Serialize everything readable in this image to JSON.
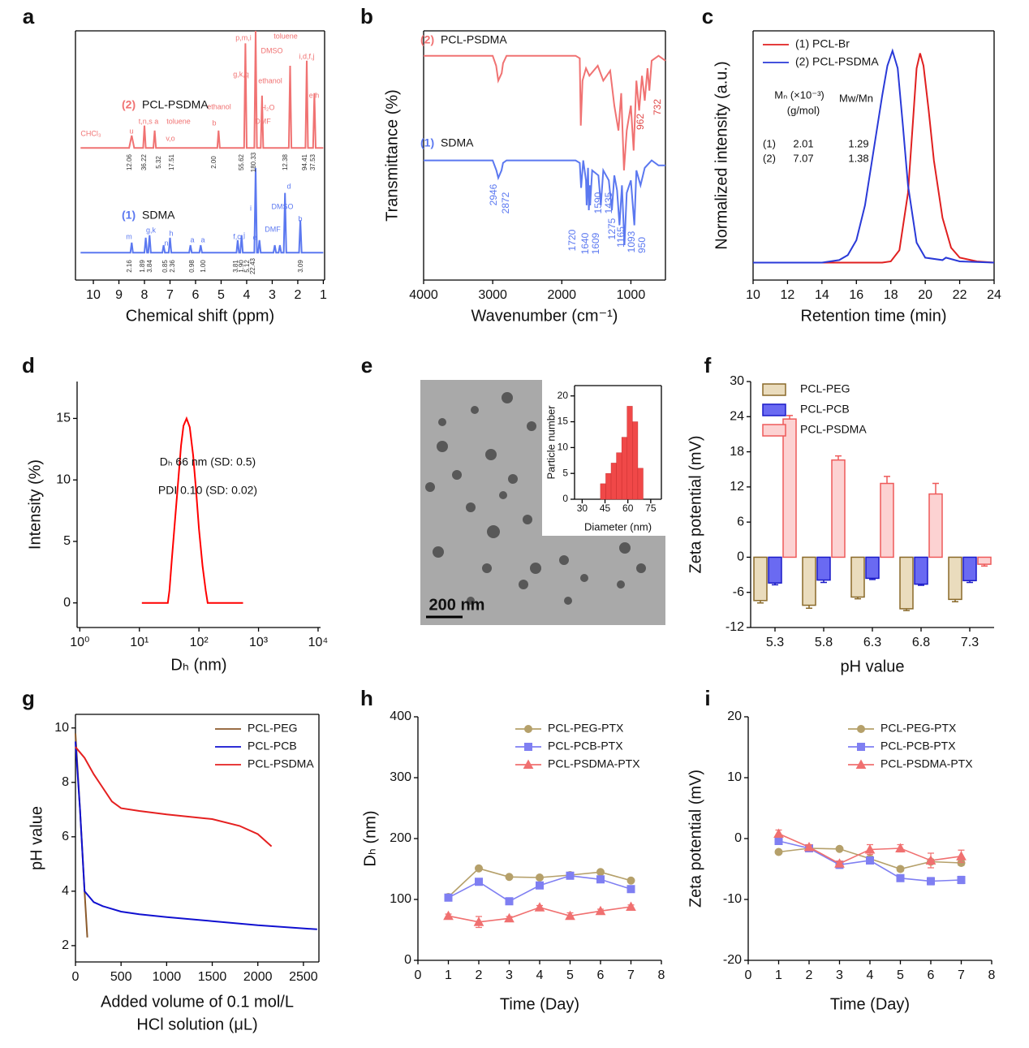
{
  "chart_data": [
    {
      "type": "spectrum",
      "panel": "a",
      "xlabel": "Chemical shift (ppm)",
      "xlim": [
        10.7,
        0.95
      ],
      "ylim": [
        0,
        100
      ],
      "xticks": [
        10,
        9,
        8,
        7,
        6,
        5,
        4,
        3,
        2,
        1
      ],
      "frame": true,
      "series": [
        {
          "tag": "(2)",
          "name": "PCL-PSDMA",
          "color": "#f07272",
          "x": [
            10.5,
            8.6,
            8.5,
            8.4,
            8.05,
            8.0,
            7.95,
            7.65,
            7.6,
            7.55,
            5.15,
            5.1,
            5.05,
            4.1,
            4.05,
            4.0,
            3.7,
            3.65,
            3.6,
            3.45,
            3.4,
            3.35,
            2.35,
            2.3,
            2.25,
            1.7,
            1.65,
            1.6,
            1.4,
            1.35,
            1.3,
            1.0
          ],
          "values": [
            53,
            53,
            58,
            53,
            53,
            62,
            53,
            53,
            60,
            53,
            53,
            60,
            53,
            53,
            95,
            53,
            53,
            100,
            53,
            53,
            74,
            53,
            53,
            86,
            53,
            53,
            88,
            53,
            53,
            75,
            53,
            53
          ]
        },
        {
          "tag": "(1)",
          "name": "SDMA",
          "color": "#5b78f0",
          "x": [
            10.5,
            8.55,
            8.5,
            8.45,
            8.0,
            7.95,
            7.9,
            7.85,
            7.8,
            7.75,
            7.3,
            7.25,
            7.2,
            7.05,
            7.0,
            6.95,
            6.25,
            6.2,
            6.15,
            5.85,
            5.8,
            5.75,
            4.4,
            4.35,
            4.3,
            4.25,
            4.2,
            4.15,
            3.7,
            3.65,
            3.6,
            3.55,
            3.5,
            3.45,
            2.95,
            2.9,
            2.85,
            2.75,
            2.7,
            2.65,
            2.55,
            2.5,
            2.45,
            1.95,
            1.9,
            1.85,
            1.0
          ],
          "values": [
            11,
            11,
            15,
            11,
            11,
            17,
            11,
            11,
            18,
            11,
            11,
            14,
            11,
            11,
            17,
            11,
            11,
            14,
            11,
            11,
            14,
            11,
            11,
            16,
            11,
            11,
            18,
            11,
            11,
            45,
            11,
            11,
            16,
            11,
            11,
            14,
            11,
            11,
            14,
            11,
            11,
            35,
            11,
            11,
            24,
            11,
            11
          ]
        }
      ],
      "annotations": [
        "p,m,i",
        "g,k,q",
        "toluene",
        "DMSO",
        "ethanol",
        "H₂O",
        "DMF",
        "i,d,f,j",
        "e,h",
        "ethanol",
        "b",
        "t,n,s a",
        "toluene",
        "v,o",
        "CHCl₃",
        "u",
        "m",
        "g,k",
        "h",
        "n",
        "a",
        "a",
        "f,c",
        "j",
        "i",
        "e",
        "d",
        "DMSO",
        "DMF",
        "b",
        "12.06",
        "36.22",
        "5.32",
        "17.51",
        "2.00",
        "55.62",
        "180.33",
        "12.38",
        "94.41",
        "37.53",
        "2.16",
        "1.89",
        "3.84",
        "0.85",
        "2.36",
        "0.98",
        "1.00",
        "3.81",
        "1.90",
        "5.12",
        "22.43",
        "3.09"
      ]
    },
    {
      "type": "spectrum",
      "panel": "b",
      "xlabel": "Wavenumber (cm⁻¹)",
      "ylabel": "Transmittance (%)",
      "xlim": [
        4000,
        500
      ],
      "ylim": [
        0,
        100
      ],
      "xticks": [
        4000,
        3000,
        2000,
        1000
      ],
      "frame": true,
      "series": [
        {
          "tag": "(2)",
          "name": "PCL-PSDMA",
          "color": "#f07272",
          "x": [
            4000,
            3000,
            2950,
            2920,
            2870,
            2850,
            2800,
            1800,
            1740,
            1725,
            1700,
            1650,
            1600,
            1480,
            1400,
            1300,
            1240,
            1180,
            1140,
            1100,
            1060,
            1000,
            960,
            920,
            880,
            840,
            800,
            760,
            732,
            700,
            600,
            500
          ],
          "values": [
            90,
            90,
            86,
            80,
            83,
            87,
            90,
            90,
            89,
            62,
            80,
            85,
            82,
            86,
            80,
            84,
            70,
            60,
            75,
            44,
            60,
            70,
            52,
            80,
            68,
            82,
            72,
            85,
            76,
            88,
            90,
            88
          ]
        },
        {
          "tag": "(1)",
          "name": "SDMA",
          "color": "#5b78f0",
          "x": [
            4000,
            3000,
            2946,
            2920,
            2872,
            2850,
            2800,
            1800,
            1740,
            1720,
            1690,
            1650,
            1640,
            1620,
            1609,
            1595,
            1590,
            1560,
            1470,
            1435,
            1400,
            1320,
            1275,
            1240,
            1200,
            1165,
            1130,
            1093,
            1060,
            1000,
            950,
            920,
            860,
            800,
            700,
            600,
            500
          ],
          "values": [
            48,
            48,
            44,
            41,
            44,
            47,
            48,
            48,
            47,
            37,
            48,
            40,
            30,
            45,
            28,
            38,
            30,
            44,
            42,
            30,
            44,
            40,
            28,
            42,
            36,
            22,
            38,
            14,
            35,
            40,
            22,
            44,
            38,
            45,
            48,
            46,
            46
          ]
        }
      ],
      "annotations": [
        "962",
        "732",
        "2946",
        "2872",
        "1720",
        "1640",
        "1609",
        "1590",
        "1435",
        "1275",
        "1165",
        "1093",
        "950"
      ]
    },
    {
      "type": "line",
      "panel": "c",
      "xlabel": "Retention time (min)",
      "ylabel": "Normalized intensity (a.u.)",
      "xlim": [
        10,
        24
      ],
      "ylim": [
        0,
        100
      ],
      "xticks": [
        10,
        12,
        14,
        16,
        18,
        20,
        22,
        24
      ],
      "frame": true,
      "series": [
        {
          "name": "(1) PCL-Br",
          "color": "#e02020",
          "x": [
            10,
            17.5,
            18,
            18.5,
            19,
            19.3,
            19.5,
            19.7,
            19.9,
            20.2,
            20.5,
            21,
            21.5,
            22,
            23,
            24
          ],
          "values": [
            7,
            7,
            7.5,
            12,
            35,
            65,
            85,
            91,
            86,
            68,
            48,
            25,
            13,
            9,
            7.5,
            7
          ]
        },
        {
          "name": "(2) PCL-PSDMA",
          "color": "#2a3ad8",
          "x": [
            10,
            14,
            15,
            15.5,
            16,
            16.5,
            17,
            17.5,
            17.8,
            18.1,
            18.4,
            18.7,
            19,
            19.5,
            20,
            21,
            21.2,
            22,
            24
          ],
          "values": [
            7,
            7,
            8,
            10,
            16,
            30,
            52,
            74,
            86,
            92,
            85,
            62,
            38,
            15,
            9,
            8,
            9,
            7.5,
            7
          ]
        }
      ],
      "annotations": [
        "Mₙ (×10⁻³)",
        "(g/mol)",
        "Mw/Mn",
        "(1)",
        "2.01",
        "1.29",
        "(2)",
        "7.07",
        "1.38"
      ]
    },
    {
      "type": "line",
      "panel": "d",
      "xlabel": "Dₕ (nm)",
      "ylabel": "Intensity (%)",
      "xscale": "log",
      "xlim": [
        0.9,
        11000
      ],
      "ylim": [
        -2,
        18
      ],
      "xticks": [
        {
          "value": 1,
          "label": "10⁰"
        },
        {
          "value": 10,
          "label": "10¹"
        },
        {
          "value": 100,
          "label": "10²"
        },
        {
          "value": 1000,
          "label": "10³"
        },
        {
          "value": 10000,
          "label": "10⁴"
        }
      ],
      "yticks": [
        0,
        5,
        10,
        15
      ],
      "series": [
        {
          "color": "#ff0000",
          "x": [
            11,
            30,
            32,
            35,
            40,
            45,
            50,
            55,
            62,
            70,
            80,
            90,
            100,
            115,
            130,
            140,
            550
          ],
          "values": [
            0,
            0,
            1,
            3.5,
            7,
            10,
            12.8,
            14.4,
            15,
            14.3,
            12,
            9,
            6,
            3,
            1,
            0,
            0
          ]
        }
      ],
      "annotations": [
        "Dₕ  66 nm (SD: 0.5)",
        "PDI  0.10 (SD: 0.02)"
      ]
    },
    {
      "type": "histogram",
      "panel": "e",
      "scale_bar": "200 nm",
      "xlabel": "Diameter (nm)",
      "ylabel": "Particle number",
      "color": "#f04848",
      "xlim": [
        25,
        82
      ],
      "ylim": [
        0,
        22
      ],
      "xticks": [
        30,
        45,
        60,
        75
      ],
      "yticks": [
        0,
        5,
        10,
        15,
        20
      ],
      "frame": true,
      "bins": [
        42,
        45.5,
        49,
        52.5,
        56,
        59.5,
        63,
        66.5,
        70
      ],
      "values": [
        3,
        5,
        7,
        9,
        12,
        18,
        15,
        6
      ]
    },
    {
      "type": "bar",
      "panel": "f",
      "xlabel": "pH value",
      "ylabel": "Zeta potential  (mV)",
      "ylim": [
        -12,
        30
      ],
      "yticks": [
        -12,
        -6,
        0,
        6,
        12,
        18,
        24,
        30
      ],
      "categories": [
        "5.3",
        "5.8",
        "6.3",
        "6.8",
        "7.3"
      ],
      "series": [
        {
          "name": "PCL-PEG",
          "color": "#eadcbd",
          "stroke": "#8a6a2a",
          "values": [
            -7.4,
            -8.2,
            -6.8,
            -8.8,
            -7.2
          ],
          "errors": [
            0.4,
            0.5,
            0.3,
            0.3,
            0.4
          ]
        },
        {
          "name": "PCL-PCB",
          "color": "#6a6af2",
          "stroke": "#1a1ac8",
          "values": [
            -4.4,
            -3.9,
            -3.6,
            -4.6,
            -4.0
          ],
          "errors": [
            0.3,
            0.4,
            0.2,
            0.2,
            0.3
          ]
        },
        {
          "name": "PCL-PSDMA",
          "color": "#fcd2d2",
          "stroke": "#ee5a5a",
          "values": [
            23.6,
            16.6,
            12.6,
            10.8,
            -1.2
          ],
          "errors": [
            0.6,
            0.7,
            1.2,
            1.8,
            0.3
          ]
        }
      ]
    },
    {
      "type": "line",
      "panel": "g",
      "xlabel": [
        "Added volume of 0.1 mol/L",
        "HCl  solution (μL)"
      ],
      "ylabel": "pH value",
      "xlim": [
        0,
        2670
      ],
      "ylim": [
        1.4,
        10.5
      ],
      "xticks": [
        0,
        500,
        1000,
        1500,
        2000,
        2500
      ],
      "yticks": [
        2,
        4,
        6,
        8,
        10
      ],
      "frame": true,
      "series": [
        {
          "name": "PCL-PEG",
          "color": "#8b5a2b",
          "x": [
            0,
            50,
            100,
            130
          ],
          "values": [
            9.8,
            7,
            4,
            2.3
          ]
        },
        {
          "name": "PCL-PCB",
          "color": "#1010d0",
          "x": [
            0,
            50,
            100,
            150,
            200,
            300,
            500,
            700,
            1000,
            1500,
            2000,
            2650
          ],
          "values": [
            9.5,
            7,
            4,
            3.8,
            3.6,
            3.45,
            3.25,
            3.15,
            3.05,
            2.9,
            2.75,
            2.6
          ]
        },
        {
          "name": "PCL-PSDMA",
          "color": "#e52020",
          "x": [
            0,
            100,
            200,
            300,
            400,
            500,
            700,
            1000,
            1500,
            1800,
            2000,
            2150
          ],
          "values": [
            9.3,
            8.9,
            8.3,
            7.8,
            7.3,
            7.05,
            6.95,
            6.82,
            6.65,
            6.4,
            6.1,
            5.65
          ]
        }
      ]
    },
    {
      "type": "line",
      "panel": "h",
      "xlabel": "Time (Day)",
      "ylabel": "Dₕ (nm)",
      "xlim": [
        0,
        8
      ],
      "ylim": [
        0,
        400
      ],
      "xticks": [
        0,
        1,
        2,
        3,
        4,
        5,
        6,
        7,
        8
      ],
      "yticks": [
        0,
        100,
        200,
        300,
        400
      ],
      "x": [
        1,
        2,
        3,
        4,
        5,
        6,
        7
      ],
      "series": [
        {
          "name": "PCL-PEG-PTX",
          "color": "#b5a06a",
          "marker": "circle",
          "values": [
            104,
            151,
            137,
            136,
            140,
            145,
            131
          ],
          "errors": [
            3,
            3,
            3,
            3,
            3,
            3,
            3
          ]
        },
        {
          "name": "PCL-PCB-PTX",
          "color": "#7f7ff2",
          "marker": "square",
          "values": [
            103,
            129,
            97,
            123,
            139,
            133,
            117
          ],
          "errors": [
            3,
            3,
            3,
            5,
            3,
            3,
            3
          ]
        },
        {
          "name": "PCL-PSDMA-PTX",
          "color": "#f07070",
          "marker": "triangle",
          "values": [
            73,
            63,
            69,
            87,
            73,
            81,
            88
          ],
          "errors": [
            3,
            9,
            3,
            3,
            5,
            3,
            3
          ]
        }
      ]
    },
    {
      "type": "line",
      "panel": "i",
      "xlabel": "Time (Day)",
      "ylabel": "Zeta potential  (mV)",
      "xlim": [
        0,
        8
      ],
      "ylim": [
        -20,
        20
      ],
      "xticks": [
        0,
        1,
        2,
        3,
        4,
        5,
        6,
        7,
        8
      ],
      "yticks": [
        -20,
        -10,
        0,
        10,
        20
      ],
      "x": [
        1,
        2,
        3,
        4,
        5,
        6,
        7
      ],
      "series": [
        {
          "name": "PCL-PEG-PTX",
          "color": "#b5a06a",
          "marker": "circle",
          "values": [
            -2.2,
            -1.6,
            -1.7,
            -3.3,
            -5,
            -3.8,
            -4
          ],
          "errors": [
            0.3,
            0.3,
            0.2,
            0.4,
            0.4,
            0.4,
            0.4
          ]
        },
        {
          "name": "PCL-PCB-PTX",
          "color": "#7f7ff2",
          "marker": "square",
          "values": [
            -0.4,
            -1.6,
            -4.3,
            -3.6,
            -6.5,
            -7,
            -6.8
          ],
          "errors": [
            0.5,
            0.3,
            0.6,
            0.4,
            0.4,
            0.6,
            0.6
          ]
        },
        {
          "name": "PCL-PSDMA-PTX",
          "color": "#f07070",
          "marker": "triangle",
          "values": [
            0.8,
            -1.4,
            -4.1,
            -1.8,
            -1.6,
            -3.6,
            -2.9
          ],
          "errors": [
            0.6,
            0.4,
            0.4,
            0.8,
            0.6,
            1.2,
            1
          ]
        }
      ]
    }
  ]
}
